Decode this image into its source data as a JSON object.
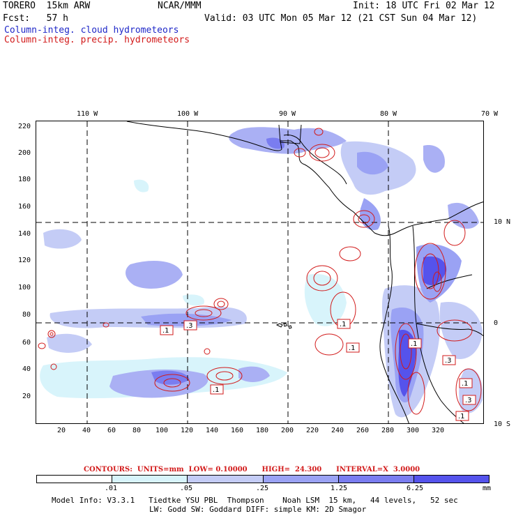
{
  "header": {
    "model": "TORERO  15km ARW",
    "org": "NCAR/MMM",
    "init": "Init: 18 UTC Fri 02 Mar 12",
    "fcst": "Fcst:   57 h",
    "valid": "Valid: 03 UTC Mon 05 Mar 12 (21 CST Sun 04 Mar 12)",
    "field1": "Column-integ. cloud hydrometeors",
    "field2": "Column-integ. precip. hydrometeors"
  },
  "axes": {
    "lon_labels": [
      "110 W",
      "100 W",
      "90 W",
      "80 W",
      "70 W"
    ],
    "lat_labels": [
      "10 N",
      "0",
      "10 S"
    ],
    "y_ticks": [
      "220",
      "200",
      "180",
      "160",
      "140",
      "120",
      "100",
      "80",
      "60",
      "40",
      "20"
    ],
    "x_ticks": [
      "20",
      "40",
      "60",
      "80",
      "100",
      "120",
      "140",
      "160",
      "180",
      "200",
      "220",
      "240",
      "260",
      "280",
      "300",
      "320"
    ]
  },
  "contour_labels": [
    ".1",
    ".1",
    ".3",
    ".1",
    ".1",
    ".1",
    ".3",
    ".1",
    ".3",
    ".1"
  ],
  "contours_info": "CONTOURS:  UNITS=mm  LOW= 0.10000      HIGH=  24.300      INTERVAL=X  3.0000",
  "legend": {
    "ticks": [
      ".01",
      ".05",
      ".25",
      "1.25",
      "6.25"
    ],
    "unit": "mm",
    "colors": [
      "#ffffff",
      "#d8f4fb",
      "#c4ccf6",
      "#9aa2f4",
      "#7a7df0",
      "#5553ec",
      "#2f28ea",
      "#1a10e8"
    ]
  },
  "footer": {
    "line1": "Model Info: V3.3.1   Tiedtke YSU PBL  Thompson    Noah LSM  15 km,   44 levels,   52 sec",
    "line2": "LW: Godd SW: Goddard DIFF: simple KM: 2D Smagor"
  }
}
